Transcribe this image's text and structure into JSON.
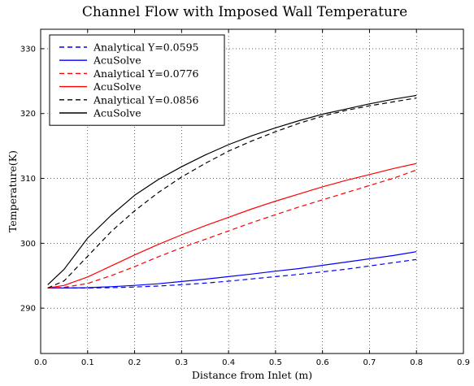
{
  "chart_data": {
    "type": "line",
    "title": "Channel Flow with Imposed Wall Temperature",
    "xlabel": "Distance from Inlet (m)",
    "ylabel": "Temperature(K)",
    "xlim": [
      0.0,
      0.9
    ],
    "ylim": [
      283,
      333
    ],
    "xticks": [
      "0.0",
      "0.1",
      "0.2",
      "0.3",
      "0.4",
      "0.5",
      "0.6",
      "0.7",
      "0.8",
      "0.9"
    ],
    "yticks": [
      "290",
      "300",
      "310",
      "320",
      "330"
    ],
    "grid": true,
    "legend_position": "top-left",
    "series": [
      {
        "name": "Analytical Y=0.0595",
        "color": "#0000ff",
        "style": "dashed",
        "x": [
          0.015,
          0.05,
          0.1,
          0.15,
          0.2,
          0.25,
          0.3,
          0.35,
          0.4,
          0.45,
          0.5,
          0.55,
          0.6,
          0.65,
          0.7,
          0.75,
          0.8
        ],
        "y": [
          293.1,
          293.1,
          293.1,
          293.15,
          293.25,
          293.4,
          293.6,
          293.85,
          294.15,
          294.5,
          294.85,
          295.2,
          295.6,
          296.0,
          296.5,
          297.0,
          297.5
        ]
      },
      {
        "name": "AcuSolve",
        "color": "#0000ff",
        "style": "solid",
        "x": [
          0.015,
          0.05,
          0.1,
          0.15,
          0.2,
          0.25,
          0.3,
          0.35,
          0.4,
          0.45,
          0.5,
          0.55,
          0.6,
          0.65,
          0.7,
          0.75,
          0.8
        ],
        "y": [
          293.1,
          293.1,
          293.15,
          293.3,
          293.5,
          293.75,
          294.1,
          294.45,
          294.85,
          295.25,
          295.7,
          296.1,
          296.6,
          297.1,
          297.6,
          298.1,
          298.7
        ]
      },
      {
        "name": "Analytical Y=0.0776",
        "color": "#ff0000",
        "style": "dashed",
        "x": [
          0.015,
          0.05,
          0.1,
          0.15,
          0.2,
          0.25,
          0.3,
          0.35,
          0.4,
          0.45,
          0.5,
          0.55,
          0.6,
          0.65,
          0.7,
          0.75,
          0.8
        ],
        "y": [
          293.1,
          293.2,
          293.8,
          295.0,
          296.4,
          297.9,
          299.3,
          300.6,
          301.9,
          303.2,
          304.4,
          305.6,
          306.7,
          307.8,
          308.9,
          310.0,
          311.3
        ]
      },
      {
        "name": "AcuSolve",
        "color": "#ff0000",
        "style": "solid",
        "x": [
          0.015,
          0.05,
          0.1,
          0.15,
          0.2,
          0.25,
          0.3,
          0.35,
          0.4,
          0.45,
          0.5,
          0.55,
          0.6,
          0.65,
          0.7,
          0.75,
          0.8
        ],
        "y": [
          293.1,
          293.5,
          294.8,
          296.5,
          298.2,
          299.8,
          301.3,
          302.7,
          304.0,
          305.3,
          306.5,
          307.6,
          308.7,
          309.7,
          310.6,
          311.5,
          312.3
        ]
      },
      {
        "name": "Analytical Y=0.0856",
        "color": "#000000",
        "style": "dashed",
        "x": [
          0.015,
          0.05,
          0.1,
          0.15,
          0.2,
          0.25,
          0.3,
          0.35,
          0.4,
          0.45,
          0.5,
          0.55,
          0.6,
          0.65,
          0.7,
          0.75,
          0.8
        ],
        "y": [
          293.1,
          294.2,
          298.0,
          301.8,
          305.0,
          307.8,
          310.2,
          312.3,
          314.2,
          315.8,
          317.2,
          318.5,
          319.6,
          320.5,
          321.2,
          321.8,
          322.4
        ]
      },
      {
        "name": "AcuSolve",
        "color": "#000000",
        "style": "solid",
        "x": [
          0.015,
          0.05,
          0.1,
          0.15,
          0.2,
          0.25,
          0.3,
          0.35,
          0.4,
          0.45,
          0.5,
          0.55,
          0.6,
          0.65,
          0.7,
          0.75,
          0.8
        ],
        "y": [
          293.6,
          296.0,
          300.8,
          304.3,
          307.4,
          309.8,
          311.8,
          313.6,
          315.2,
          316.6,
          317.8,
          318.9,
          319.9,
          320.7,
          321.5,
          322.2,
          322.8
        ]
      }
    ]
  }
}
